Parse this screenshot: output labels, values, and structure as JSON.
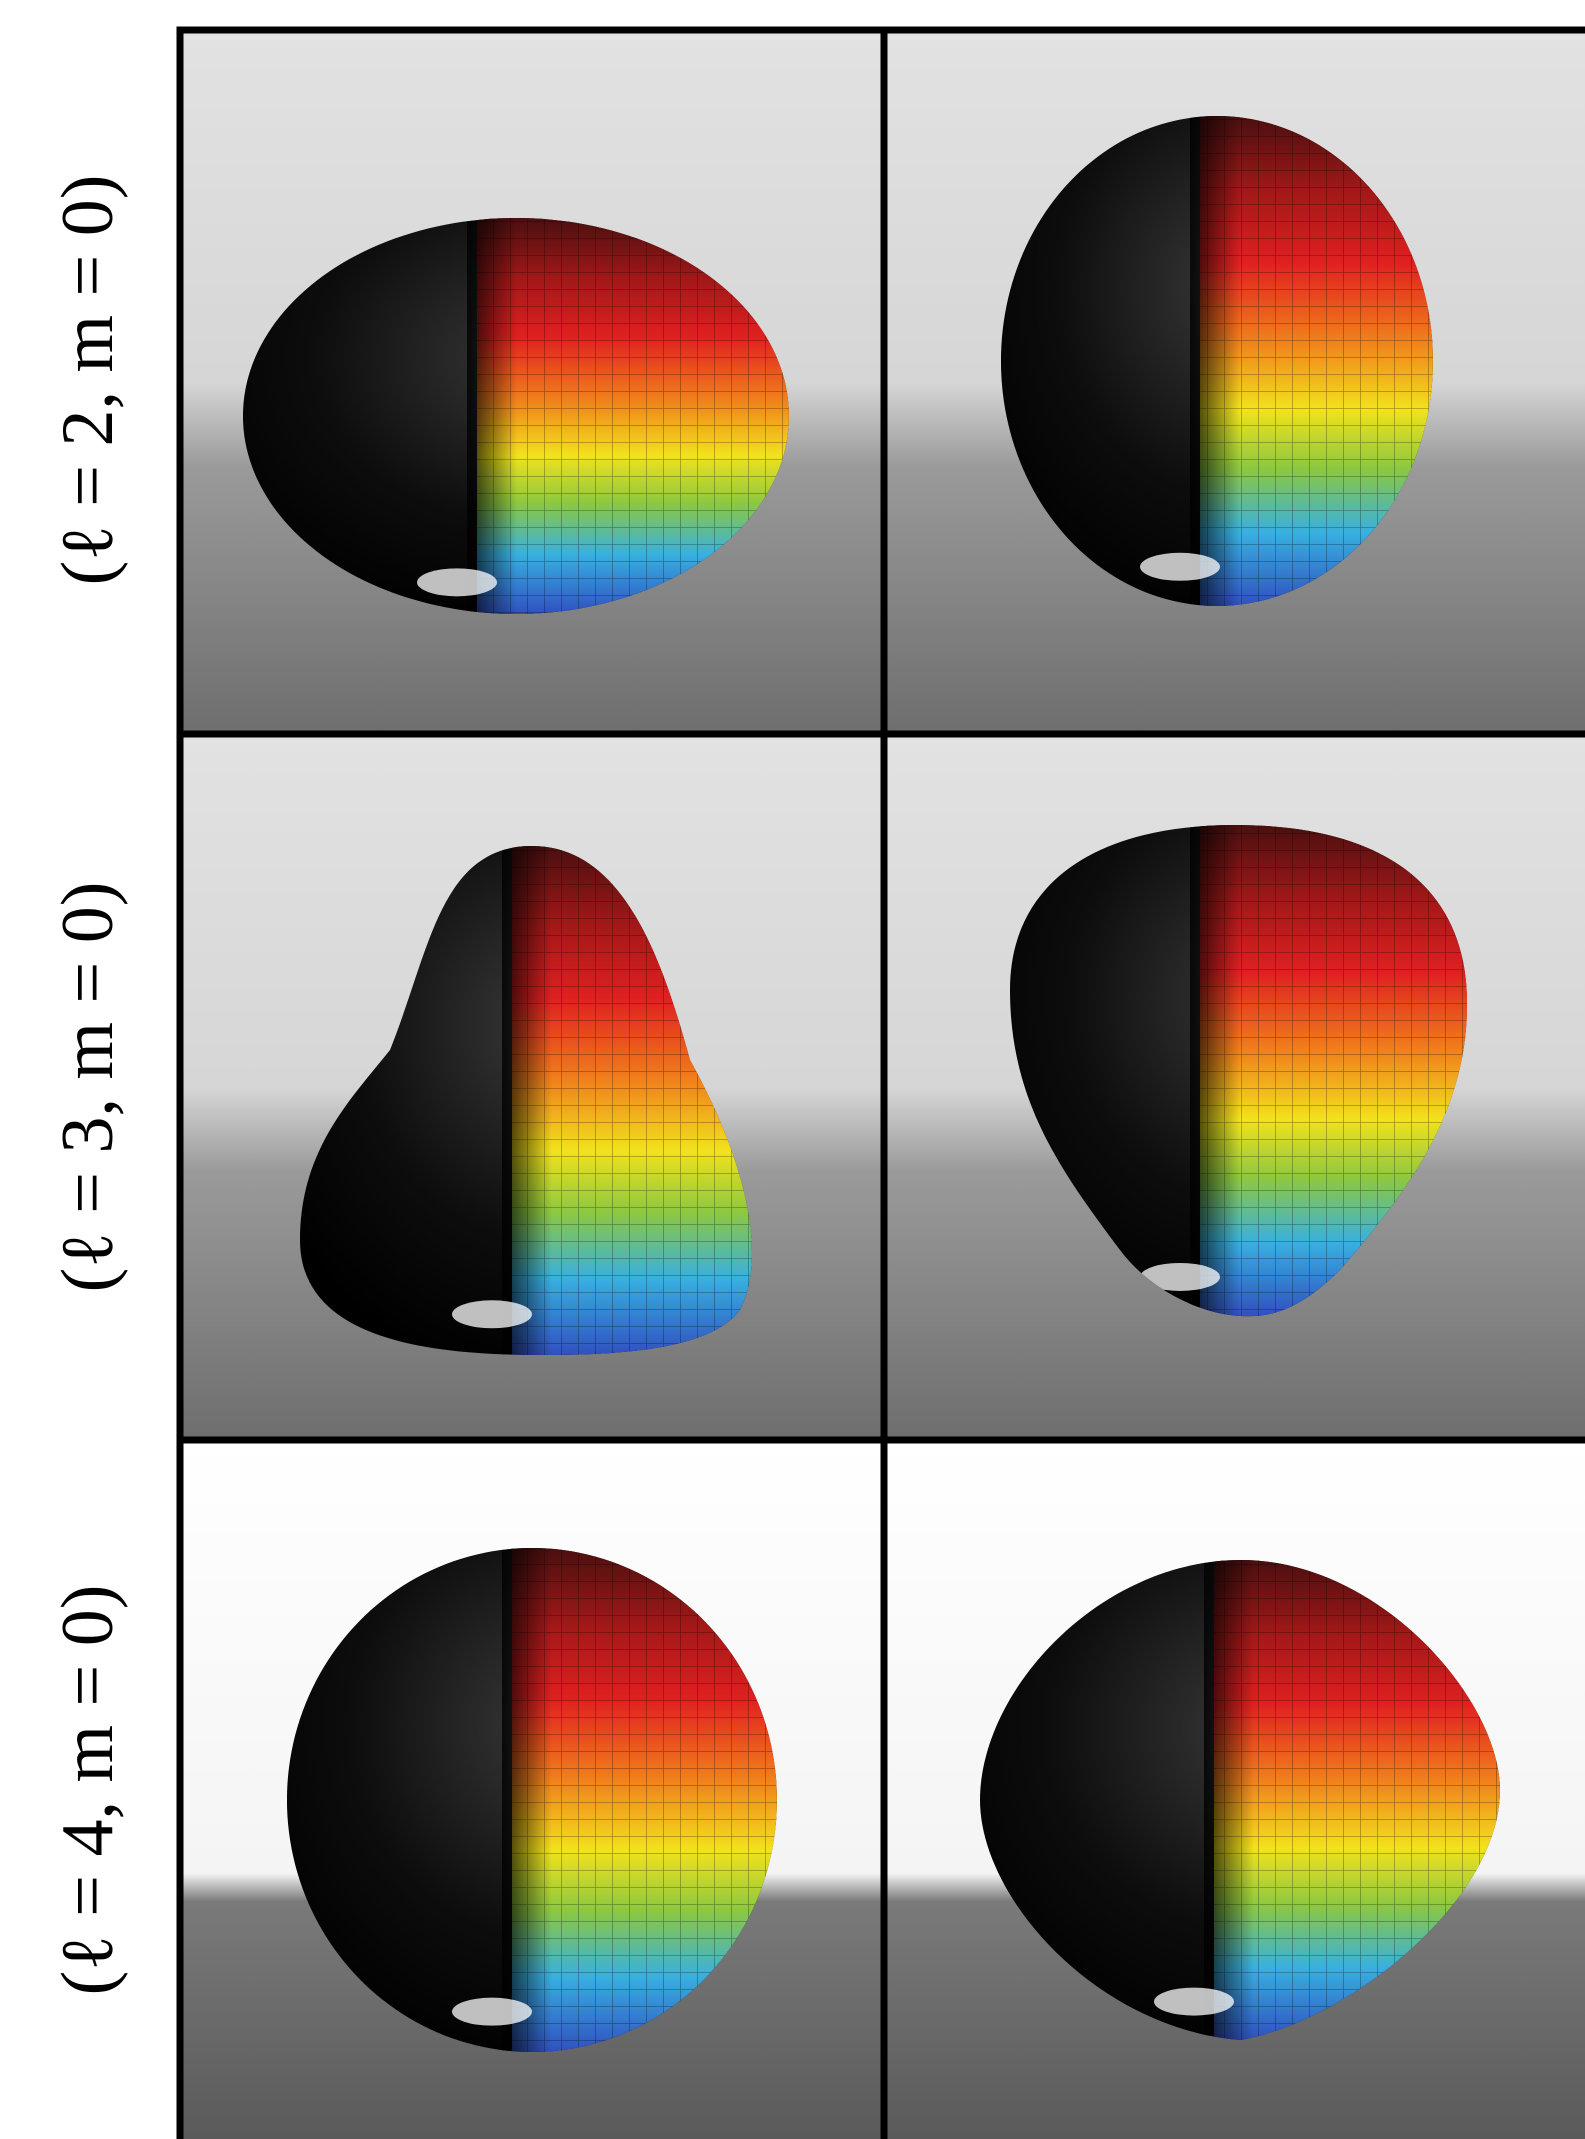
{
  "rows": [
    {
      "label": "(ℓ = 2, m = 0)"
    },
    {
      "label": "(ℓ = 3, m = 0)"
    },
    {
      "label": "(ℓ = 4, m = 0)"
    }
  ]
}
